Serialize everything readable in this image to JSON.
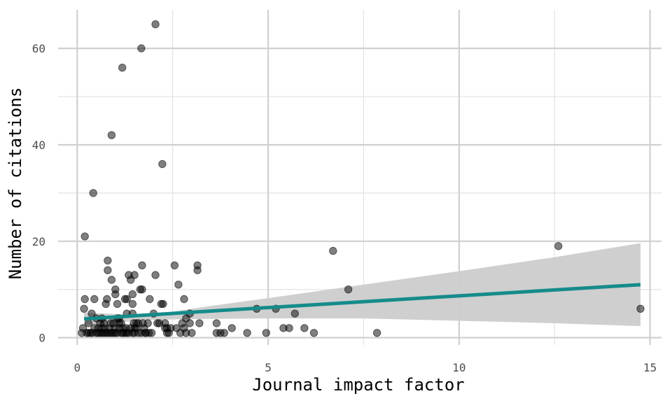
{
  "chart_data": {
    "type": "scatter",
    "xlabel": "Journal impact factor",
    "ylabel": "Number of citations",
    "xlim": [
      -0.5,
      15.3
    ],
    "ylim": [
      -1.5,
      68
    ],
    "x_ticks": [
      0,
      5,
      10,
      15
    ],
    "y_ticks": [
      0,
      20,
      40,
      60
    ],
    "grid": true,
    "colors": {
      "points": "#000000",
      "fit_line": "#168b8b",
      "confidence_band": "#cccccc",
      "grid_major": "#d0d0d0",
      "grid_minor": "#e2e2e2"
    },
    "points": [
      [
        2.05,
        65
      ],
      [
        1.68,
        60
      ],
      [
        1.18,
        56
      ],
      [
        0.9,
        42
      ],
      [
        2.23,
        36
      ],
      [
        0.42,
        30
      ],
      [
        0.2,
        21
      ],
      [
        6.7,
        18
      ],
      [
        12.6,
        19
      ],
      [
        7.1,
        10
      ],
      [
        14.75,
        6
      ],
      [
        7.85,
        1
      ],
      [
        4.7,
        6
      ],
      [
        5.2,
        6
      ],
      [
        5.7,
        5
      ],
      [
        5.4,
        2
      ],
      [
        5.55,
        2
      ],
      [
        5.95,
        2
      ],
      [
        6.2,
        1
      ],
      [
        4.45,
        1
      ],
      [
        4.95,
        1
      ],
      [
        3.65,
        3
      ],
      [
        3.65,
        1
      ],
      [
        3.75,
        1
      ],
      [
        3.85,
        1
      ],
      [
        4.05,
        2
      ],
      [
        2.55,
        15
      ],
      [
        3.15,
        15
      ],
      [
        3.15,
        14
      ],
      [
        2.65,
        11
      ],
      [
        2.8,
        8
      ],
      [
        2.95,
        3
      ],
      [
        3.0,
        1
      ],
      [
        2.95,
        5
      ],
      [
        2.85,
        4
      ],
      [
        3.2,
        3
      ],
      [
        2.75,
        3
      ],
      [
        2.8,
        2
      ],
      [
        2.7,
        1
      ],
      [
        2.85,
        1
      ],
      [
        2.6,
        2
      ],
      [
        2.45,
        2
      ],
      [
        2.35,
        1
      ],
      [
        2.4,
        1
      ],
      [
        2.3,
        2
      ],
      [
        2.3,
        3
      ],
      [
        2.2,
        7
      ],
      [
        2.25,
        7
      ],
      [
        2.1,
        3
      ],
      [
        2.05,
        13
      ],
      [
        2.0,
        5
      ],
      [
        1.95,
        1
      ],
      [
        1.9,
        8
      ],
      [
        1.8,
        1
      ],
      [
        1.7,
        15
      ],
      [
        1.65,
        10
      ],
      [
        1.7,
        10
      ],
      [
        1.72,
        3
      ],
      [
        1.78,
        1
      ],
      [
        1.6,
        1
      ],
      [
        1.55,
        3
      ],
      [
        1.5,
        13
      ],
      [
        1.45,
        9
      ],
      [
        1.45,
        7
      ],
      [
        1.45,
        5
      ],
      [
        1.4,
        12
      ],
      [
        1.35,
        13
      ],
      [
        1.3,
        8
      ],
      [
        1.3,
        5
      ],
      [
        1.25,
        8
      ],
      [
        1.15,
        1
      ],
      [
        1.1,
        2
      ],
      [
        1.0,
        10
      ],
      [
        1.0,
        9
      ],
      [
        1.05,
        7
      ],
      [
        1.05,
        4
      ],
      [
        0.9,
        12
      ],
      [
        0.8,
        16
      ],
      [
        0.8,
        14
      ],
      [
        0.78,
        8
      ],
      [
        0.75,
        7
      ],
      [
        0.7,
        3
      ],
      [
        0.65,
        2
      ],
      [
        0.45,
        8
      ],
      [
        0.38,
        5
      ],
      [
        0.3,
        3
      ],
      [
        0.2,
        8
      ],
      [
        0.18,
        6
      ],
      [
        0.15,
        2
      ],
      [
        0.12,
        1
      ],
      [
        0.25,
        1
      ],
      [
        0.35,
        1
      ],
      [
        0.45,
        2
      ],
      [
        0.55,
        1
      ],
      [
        0.6,
        3
      ],
      [
        0.65,
        1
      ],
      [
        0.75,
        1
      ],
      [
        0.85,
        2
      ],
      [
        0.9,
        1
      ],
      [
        0.95,
        3
      ],
      [
        1.05,
        1
      ],
      [
        1.1,
        3
      ],
      [
        1.2,
        2
      ],
      [
        1.25,
        1
      ],
      [
        1.35,
        1
      ],
      [
        1.4,
        2
      ],
      [
        1.5,
        1
      ],
      [
        1.55,
        2
      ],
      [
        1.6,
        3
      ],
      [
        0.5,
        1
      ],
      [
        0.7,
        1
      ],
      [
        0.8,
        1
      ],
      [
        1.0,
        1
      ],
      [
        1.2,
        1
      ],
      [
        0.3,
        1
      ],
      [
        0.4,
        1
      ],
      [
        0.6,
        1
      ],
      [
        0.95,
        1
      ],
      [
        1.3,
        1
      ],
      [
        1.45,
        1
      ],
      [
        0.85,
        1
      ],
      [
        1.15,
        3
      ],
      [
        0.55,
        2
      ],
      [
        0.72,
        2
      ],
      [
        0.98,
        2
      ],
      [
        1.28,
        2
      ],
      [
        1.48,
        3
      ],
      [
        0.88,
        3
      ],
      [
        1.75,
        2
      ],
      [
        1.85,
        3
      ],
      [
        2.15,
        3
      ],
      [
        2.35,
        2
      ],
      [
        0.5,
        4
      ],
      [
        0.65,
        4
      ],
      [
        1.1,
        4
      ],
      [
        1.5,
        2
      ],
      [
        1.68,
        1
      ],
      [
        1.88,
        1
      ]
    ],
    "fit_line": [
      [
        0.18,
        3.9
      ],
      [
        14.75,
        11.0
      ]
    ],
    "confidence_band": {
      "upper": [
        [
          0.18,
          5.2
        ],
        [
          0.8,
          5.0
        ],
        [
          1.6,
          4.7
        ],
        [
          2.5,
          5.4
        ],
        [
          3.5,
          6.6
        ],
        [
          5.0,
          8.2
        ],
        [
          7.5,
          11.0
        ],
        [
          10,
          13.8
        ],
        [
          12.5,
          16.7
        ],
        [
          14.75,
          19.6
        ]
      ],
      "lower": [
        [
          0.18,
          2.6
        ],
        [
          0.8,
          2.9
        ],
        [
          1.6,
          3.6
        ],
        [
          2.5,
          3.8
        ],
        [
          3.5,
          3.9
        ],
        [
          5.0,
          4.0
        ],
        [
          7.5,
          4.0
        ],
        [
          10,
          3.5
        ],
        [
          12.5,
          3.0
        ],
        [
          14.75,
          2.4
        ]
      ]
    }
  }
}
